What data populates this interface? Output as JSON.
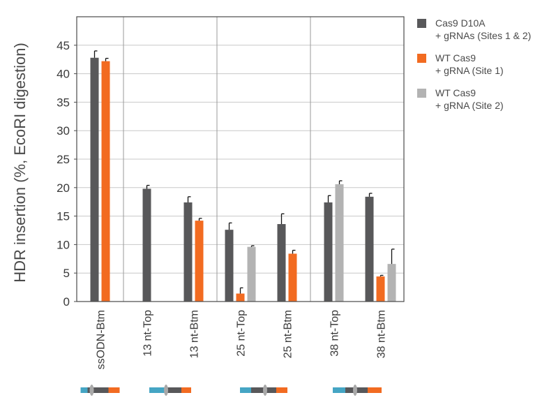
{
  "chart_data": {
    "type": "bar",
    "ylabel": "HDR insertion (%, EcoRI digestion)",
    "xlabel": "",
    "ylim": [
      0,
      50
    ],
    "yticks": [
      0,
      5,
      10,
      15,
      20,
      25,
      30,
      35,
      40,
      45
    ],
    "categories": [
      "ssODN-Btm",
      "13 nt-Top",
      "13 nt-Btm",
      "25 nt-Top",
      "25 nt-Btm",
      "38 nt-Top",
      "38 nt-Btm"
    ],
    "groups": [
      [
        "ssODN-Btm"
      ],
      [
        "13 nt-Top",
        "13 nt-Btm"
      ],
      [
        "25 nt-Top",
        "25 nt-Btm"
      ],
      [
        "38 nt-Top",
        "38 nt-Btm"
      ]
    ],
    "series": [
      {
        "name": "Cas9 D10A\n+ gRNAs (Sites 1 & 2)",
        "color": "#58585a",
        "values": [
          42.8,
          19.8,
          17.4,
          12.6,
          13.6,
          17.4,
          18.4
        ],
        "errors": [
          1.2,
          0.6,
          1.0,
          1.2,
          1.8,
          1.2,
          0.6
        ]
      },
      {
        "name": "WT Cas9\n+ gRNA (Site 1)",
        "color": "#f26b21",
        "values": [
          42.2,
          null,
          14.2,
          1.4,
          8.4,
          null,
          4.4
        ],
        "errors": [
          0.5,
          null,
          0.4,
          1.0,
          0.6,
          null,
          0.2
        ]
      },
      {
        "name": "WT Cas9\n+ gRNA (Site 2)",
        "color": "#b3b3b3",
        "values": [
          null,
          null,
          null,
          9.6,
          null,
          20.6,
          6.6
        ],
        "errors": [
          null,
          null,
          null,
          0.2,
          null,
          0.6,
          2.6
        ]
      }
    ],
    "schematic_colors": {
      "blue": "#45a5c4",
      "dark": "#58585a",
      "orange": "#f26b21",
      "marker": "#a9a9a9"
    },
    "grid": true,
    "legend_position": "right"
  }
}
